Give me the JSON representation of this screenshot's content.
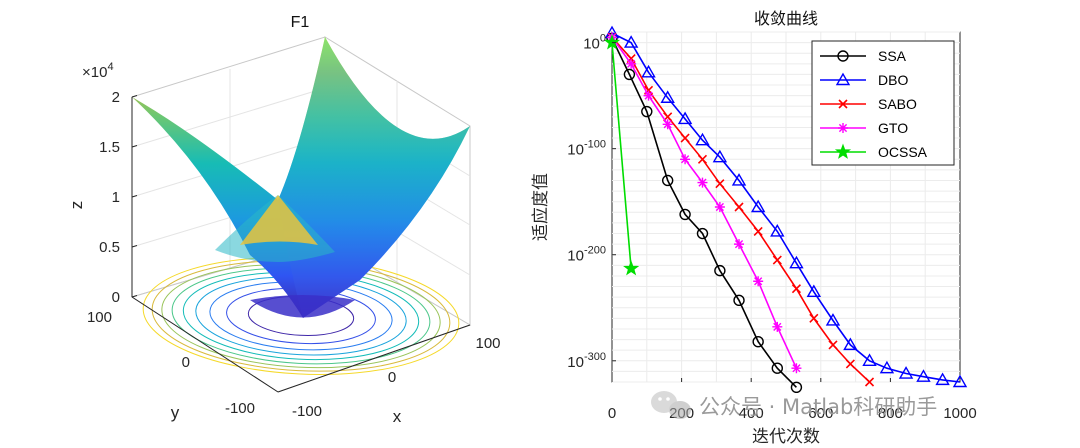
{
  "chart_data": [
    {
      "type": "surface3d",
      "title": "F1",
      "xlabel": "x",
      "ylabel": "y",
      "zlabel": "z",
      "z_multiplier": "×10^4",
      "z_mult_base": "×10",
      "z_mult_exp": "4",
      "xlim": [
        -100,
        100
      ],
      "ylim": [
        -100,
        100
      ],
      "zlim": [
        0,
        2
      ],
      "xticks": [
        "-100",
        "0",
        "100"
      ],
      "yticks": [
        "-100",
        "0",
        "100"
      ],
      "zticks": [
        "0",
        "0.5",
        "1",
        "1.5",
        "2"
      ],
      "function": "z = x^2 + y^2",
      "contour_levels": 9
    },
    {
      "type": "line",
      "title": "收敛曲线",
      "xlabel": "迭代次数",
      "ylabel": "适应度值",
      "yscale": "log",
      "xlim": [
        0,
        1000
      ],
      "ylim_exponent": [
        -320,
        10
      ],
      "xticks": [
        "0",
        "200",
        "400",
        "600",
        "800",
        "1000"
      ],
      "yticks": [
        {
          "base": "10",
          "exp": "0"
        },
        {
          "base": "10",
          "exp": "-100"
        },
        {
          "base": "10",
          "exp": "-200"
        },
        {
          "base": "10",
          "exp": "-300"
        }
      ],
      "series": [
        {
          "name": "SSA",
          "color": "#000000",
          "marker": "circle",
          "x": [
            0,
            50,
            100,
            160,
            210,
            260,
            310,
            365,
            420,
            475,
            530
          ],
          "y_exponent": [
            4,
            -30,
            -65,
            -130,
            -162,
            -180,
            -215,
            -243,
            -282,
            -307,
            -325
          ]
        },
        {
          "name": "DBO",
          "color": "#0000ff",
          "marker": "triangle",
          "x": [
            0,
            55,
            105,
            160,
            210,
            260,
            310,
            365,
            420,
            475,
            530,
            580,
            635,
            685,
            740,
            790,
            845,
            895,
            950,
            1000
          ],
          "y_exponent": [
            9,
            0,
            -28,
            -52,
            -72,
            -92,
            -108,
            -130,
            -155,
            -178,
            -208,
            -235,
            -262,
            -285,
            -300,
            -307,
            -312,
            -315,
            -318,
            -320
          ]
        },
        {
          "name": "SABO",
          "color": "#ff0000",
          "marker": "x",
          "x": [
            0,
            55,
            105,
            160,
            210,
            260,
            310,
            365,
            420,
            475,
            530,
            580,
            635,
            685,
            740
          ],
          "y_exponent": [
            5,
            -15,
            -45,
            -70,
            -90,
            -110,
            -133,
            -155,
            -178,
            -205,
            -232,
            -260,
            -285,
            -303,
            -320
          ]
        },
        {
          "name": "GTO",
          "color": "#ff00ff",
          "marker": "asterisk",
          "x": [
            0,
            55,
            105,
            160,
            210,
            260,
            310,
            365,
            420,
            475,
            530
          ],
          "y_exponent": [
            5,
            -20,
            -50,
            -77,
            -110,
            -132,
            -155,
            -190,
            -225,
            -268,
            -307
          ]
        },
        {
          "name": "OCSSA",
          "color": "#00dd00",
          "marker": "pentagram",
          "x": [
            0,
            55
          ],
          "y_exponent": [
            0,
            -213
          ]
        }
      ]
    }
  ],
  "watermark": "公众号 · Matlab科研助手"
}
